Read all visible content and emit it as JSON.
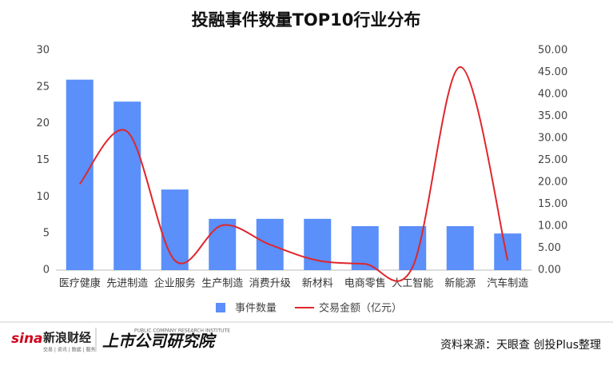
{
  "chart_data": {
    "type": "combo",
    "title": "投融事件数量TOP10行业分布",
    "categories": [
      "医疗健康",
      "先进制造",
      "企业服务",
      "生产制造",
      "消费升级",
      "新材料",
      "电商零售",
      "人工智能",
      "新能源",
      "汽车制造"
    ],
    "series": [
      {
        "name": "事件数量",
        "type": "bar",
        "axis": "y",
        "color": "#5b8ff9",
        "values": [
          26,
          23,
          11,
          7,
          7,
          7,
          6,
          6,
          6,
          5
        ]
      },
      {
        "name": "交易金额（亿元）",
        "type": "line",
        "axis": "y2",
        "color": "#e0262b",
        "values": [
          19.6,
          31.5,
          2.2,
          10.2,
          5.8,
          2.2,
          1.4,
          0.7,
          46.2,
          2.2
        ]
      }
    ],
    "ylim": [
      0,
      30
    ],
    "yticks": [
      0,
      5,
      10,
      15,
      20,
      25,
      30
    ],
    "y2lim": [
      0,
      50
    ],
    "y2ticks": [
      {
        "value": 0,
        "label": "0.00"
      },
      {
        "value": 5,
        "label": "5.00"
      },
      {
        "value": 10,
        "label": "10.00"
      },
      {
        "value": 15,
        "label": "15.00"
      },
      {
        "value": 20,
        "label": "20.00"
      },
      {
        "value": 25,
        "label": "25.00"
      },
      {
        "value": 30,
        "label": "30.00"
      },
      {
        "value": 35,
        "label": "35.00"
      },
      {
        "value": 40,
        "label": "40.00"
      },
      {
        "value": 45,
        "label": "45.00"
      },
      {
        "value": 50,
        "label": "50.00"
      }
    ],
    "grid": false,
    "legend": "bottom"
  },
  "footer": {
    "brand": "sina",
    "brand_name": "新浪财经",
    "brand_sub": "交易 | 资讯 | 数据 | 服务",
    "institute": "上市公司研究院",
    "institute_en": "PUBLIC COMPANY RESEARCH INSTITUTE",
    "source": "资料来源：天眼查 创投Plus整理"
  }
}
